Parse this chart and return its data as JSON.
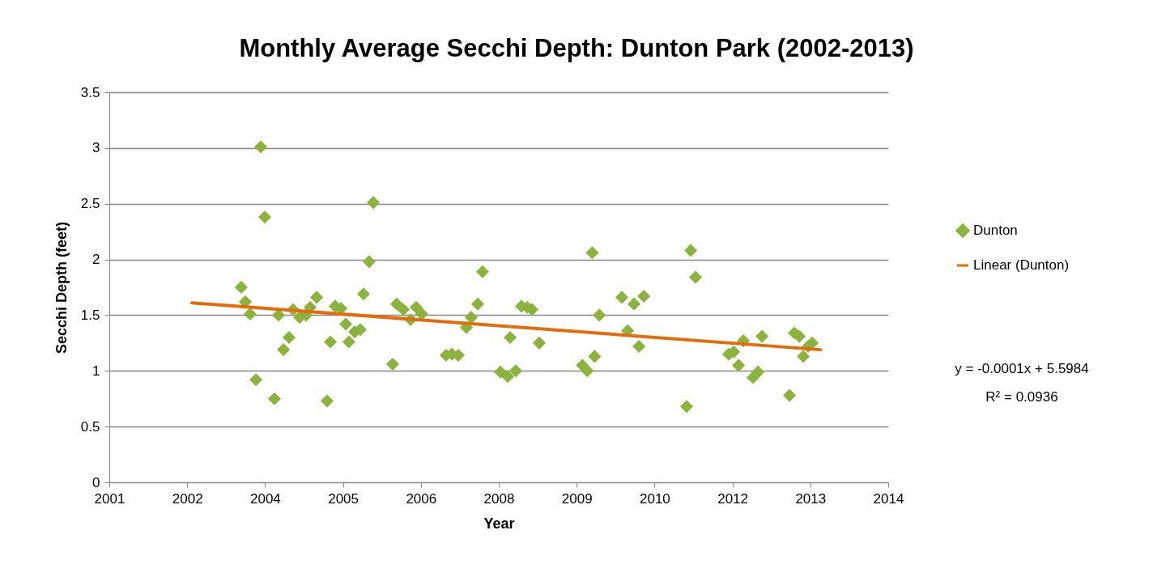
{
  "chart_data": {
    "type": "scatter",
    "title": "Monthly Average Secchi Depth: Dunton Park (2002-2013)",
    "xlabel": "Year",
    "ylabel": "Secchi Depth (feet)",
    "xlim": [
      "2001-04-19",
      "2014-12-27"
    ],
    "xticks": [
      {
        "value": "2001-04-19",
        "label": "2001"
      },
      {
        "value": "2002-09-01",
        "label": "2002"
      },
      {
        "value": "2004-01-14",
        "label": "2004"
      },
      {
        "value": "2005-05-28",
        "label": "2005"
      },
      {
        "value": "2006-10-10",
        "label": "2006"
      },
      {
        "value": "2008-02-22",
        "label": "2008"
      },
      {
        "value": "2009-07-06",
        "label": "2009"
      },
      {
        "value": "2010-11-18",
        "label": "2010"
      },
      {
        "value": "2012-04-01",
        "label": "2012"
      },
      {
        "value": "2013-08-14",
        "label": "2013"
      },
      {
        "value": "2014-12-27",
        "label": "2014"
      }
    ],
    "ylim": [
      0,
      3.5
    ],
    "yticks": [
      0,
      0.5,
      1,
      1.5,
      2,
      2.5,
      3,
      3.5
    ],
    "grid": "y",
    "legend": "right",
    "series": [
      {
        "name": "Dunton",
        "color": "#8db33f",
        "marker": "diamond",
        "x": [
          "2003-08-14",
          "2003-09-09",
          "2003-10-10",
          "2003-11-16",
          "2003-12-17",
          "2004-01-12",
          "2004-03-14",
          "2004-04-09",
          "2004-05-11",
          "2004-06-16",
          "2004-07-12",
          "2004-08-23",
          "2004-10-03",
          "2004-10-29",
          "2004-12-10",
          "2005-02-15",
          "2005-03-08",
          "2005-04-08",
          "2005-05-15",
          "2005-06-15",
          "2005-07-05",
          "2005-08-11",
          "2005-09-16",
          "2005-10-07",
          "2005-11-12",
          "2005-12-09",
          "2006-04-12",
          "2006-05-08",
          "2006-06-19",
          "2006-08-05",
          "2006-09-10",
          "2006-10-16",
          "2007-03-21",
          "2007-04-27",
          "2007-06-07",
          "2007-07-29",
          "2007-08-29",
          "2007-10-10",
          "2007-11-10",
          "2008-03-04",
          "2008-04-19",
          "2008-05-05",
          "2008-06-10",
          "2008-07-17",
          "2008-08-22",
          "2008-09-22",
          "2008-11-08",
          "2009-08-12",
          "2009-09-12",
          "2009-10-14",
          "2009-10-29",
          "2009-11-29",
          "2010-04-22",
          "2010-05-29",
          "2010-07-09",
          "2010-08-10",
          "2010-09-10",
          "2011-06-12",
          "2011-07-08",
          "2011-08-08",
          "2012-03-08",
          "2012-04-09",
          "2012-05-10",
          "2012-06-10",
          "2012-08-11",
          "2012-09-12",
          "2012-10-08",
          "2013-04-02",
          "2013-05-04",
          "2013-06-04",
          "2013-06-30",
          "2013-07-31",
          "2013-08-26"
        ],
        "values": [
          1.75,
          1.62,
          1.51,
          0.92,
          3.01,
          2.38,
          0.75,
          1.5,
          1.19,
          1.3,
          1.55,
          1.48,
          1.5,
          1.57,
          1.66,
          0.73,
          1.26,
          1.58,
          1.56,
          1.42,
          1.26,
          1.35,
          1.37,
          1.69,
          1.98,
          2.51,
          1.06,
          1.6,
          1.55,
          1.46,
          1.57,
          1.51,
          1.14,
          1.15,
          1.14,
          1.39,
          1.48,
          1.6,
          1.89,
          0.99,
          0.95,
          1.3,
          1,
          1.58,
          1.57,
          1.55,
          1.25,
          1.05,
          1,
          2.06,
          1.13,
          1.5,
          1.66,
          1.36,
          1.6,
          1.22,
          1.67,
          0.68,
          2.08,
          1.84,
          1.15,
          1.17,
          1.05,
          1.27,
          0.94,
          0.99,
          1.31,
          0.78,
          1.34,
          1.31,
          1.13,
          1.22,
          1.25
        ]
      },
      {
        "name": "Linear (Dunton)",
        "type": "line",
        "color": "#e46c0a",
        "x": [
          "2002-10-01",
          "2013-10-17"
        ],
        "values": [
          1.61,
          1.19
        ]
      }
    ],
    "annotations": [
      "y = -0.0001x + 5.5984",
      "R² = 0.0936"
    ]
  }
}
